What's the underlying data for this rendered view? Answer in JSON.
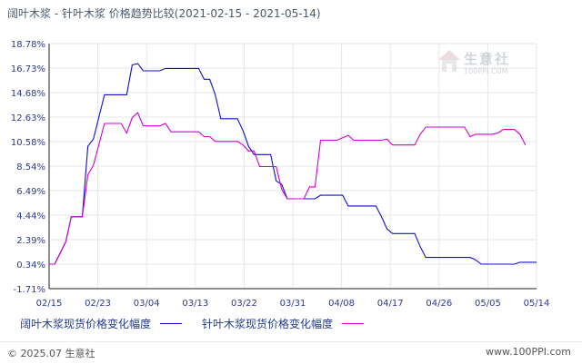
{
  "title": "阔叶木浆 - 针叶木浆 价格趋势比较(2021-02-15 - 2021-05-14)",
  "footer": {
    "copyright": "© 2025.07 生意社",
    "site": "www.100PPI.com"
  },
  "watermark": {
    "name": "生意社",
    "url": "100PPI.COM"
  },
  "chart_data": {
    "type": "line",
    "title": "阔叶木浆 - 针叶木浆 价格趋势比较(2021-02-15 - 2021-05-14)",
    "xlabel": "",
    "ylabel": "",
    "x_ticks": [
      "02/15",
      "02/23",
      "03/04",
      "03/13",
      "03/22",
      "03/31",
      "04/08",
      "04/17",
      "04/26",
      "05/05",
      "05/14"
    ],
    "y_ticks": [
      "18.78%",
      "16.73%",
      "14.68%",
      "12.63%",
      "10.58%",
      "8.54%",
      "6.49%",
      "4.44%",
      "2.39%",
      "0.34%",
      "-1.71%"
    ],
    "ylim": [
      -1.71,
      18.78
    ],
    "grid": true,
    "legend_position": "bottom",
    "series": [
      {
        "name": "阔叶木浆现货价格变化幅度",
        "color": "#1010c8",
        "points": [
          [
            0,
            0.34
          ],
          [
            1,
            0.34
          ],
          [
            3,
            2.2
          ],
          [
            4,
            4.3
          ],
          [
            5,
            4.3
          ],
          [
            6,
            4.3
          ],
          [
            7,
            10.2
          ],
          [
            8,
            10.8
          ],
          [
            10,
            14.5
          ],
          [
            14,
            14.5
          ],
          [
            15,
            17.0
          ],
          [
            16,
            17.1
          ],
          [
            17,
            16.5
          ],
          [
            20,
            16.5
          ],
          [
            21,
            16.7
          ],
          [
            27,
            16.7
          ],
          [
            28,
            15.8
          ],
          [
            29,
            15.8
          ],
          [
            30,
            14.5
          ],
          [
            31,
            12.5
          ],
          [
            34,
            12.5
          ],
          [
            35,
            11.5
          ],
          [
            36,
            10.2
          ],
          [
            37,
            9.5
          ],
          [
            40,
            9.5
          ],
          [
            41,
            7.3
          ],
          [
            42,
            7.0
          ],
          [
            43,
            5.8
          ],
          [
            47,
            5.8
          ],
          [
            48,
            5.8
          ],
          [
            49,
            6.1
          ],
          [
            53,
            6.1
          ],
          [
            54,
            5.2
          ],
          [
            59,
            5.2
          ],
          [
            60,
            4.3
          ],
          [
            61,
            3.3
          ],
          [
            62,
            2.9
          ],
          [
            66,
            2.9
          ],
          [
            67,
            1.8
          ],
          [
            68,
            0.9
          ],
          [
            76,
            0.9
          ],
          [
            77,
            0.7
          ],
          [
            78,
            0.34
          ],
          [
            84,
            0.34
          ],
          [
            85,
            0.5
          ],
          [
            88,
            0.5
          ]
        ]
      },
      {
        "name": "针叶木浆现货价格变化幅度",
        "color": "#d000d0",
        "points": [
          [
            0,
            0.34
          ],
          [
            1,
            0.34
          ],
          [
            3,
            2.2
          ],
          [
            4,
            4.3
          ],
          [
            5,
            4.3
          ],
          [
            6,
            4.3
          ],
          [
            7,
            7.8
          ],
          [
            8,
            8.6
          ],
          [
            10,
            12.1
          ],
          [
            13,
            12.1
          ],
          [
            14,
            11.3
          ],
          [
            15,
            12.6
          ],
          [
            16,
            13.0
          ],
          [
            17,
            11.9
          ],
          [
            20,
            11.9
          ],
          [
            21,
            12.1
          ],
          [
            22,
            11.4
          ],
          [
            27,
            11.4
          ],
          [
            28,
            11.0
          ],
          [
            29,
            11.0
          ],
          [
            30,
            10.6
          ],
          [
            34,
            10.6
          ],
          [
            35,
            10.3
          ],
          [
            36,
            9.8
          ],
          [
            37,
            9.8
          ],
          [
            38,
            8.5
          ],
          [
            41,
            8.5
          ],
          [
            42,
            6.6
          ],
          [
            43,
            5.8
          ],
          [
            46,
            5.8
          ],
          [
            47,
            6.8
          ],
          [
            48,
            6.8
          ],
          [
            49,
            10.7
          ],
          [
            52,
            10.7
          ],
          [
            53,
            10.9
          ],
          [
            54,
            11.1
          ],
          [
            55,
            10.7
          ],
          [
            60,
            10.7
          ],
          [
            61,
            10.8
          ],
          [
            62,
            10.3
          ],
          [
            66,
            10.3
          ],
          [
            67,
            11.2
          ],
          [
            68,
            11.8
          ],
          [
            75,
            11.8
          ],
          [
            76,
            11.0
          ],
          [
            77,
            11.2
          ],
          [
            80,
            11.2
          ],
          [
            81,
            11.3
          ],
          [
            82,
            11.6
          ],
          [
            84,
            11.6
          ],
          [
            85,
            11.2
          ],
          [
            86,
            10.3
          ]
        ]
      }
    ]
  }
}
